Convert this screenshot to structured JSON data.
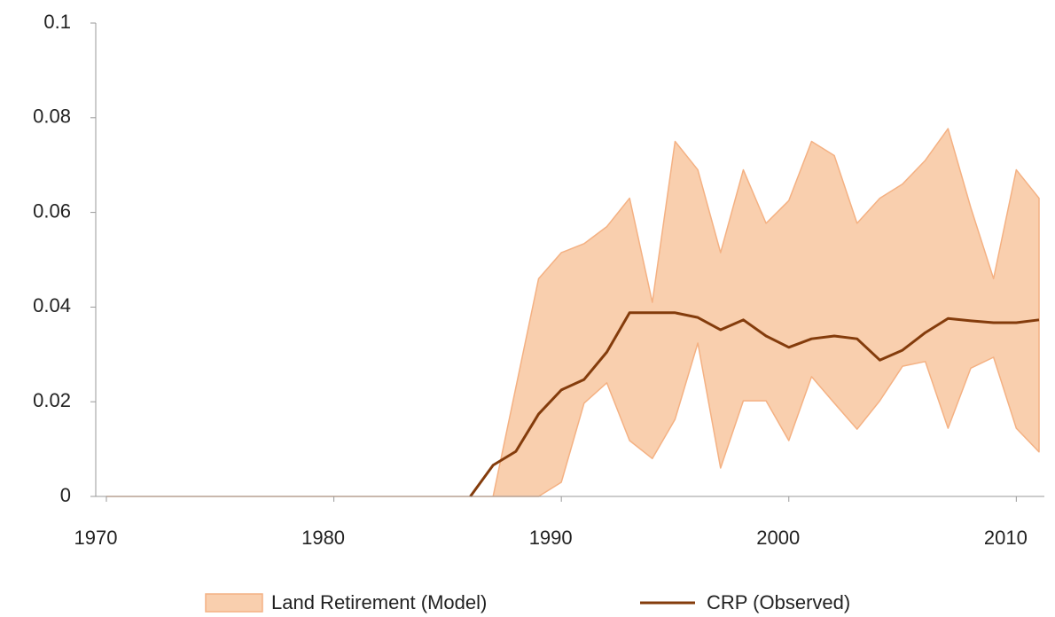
{
  "chart_data": {
    "type": "line",
    "x": [
      1970,
      1971,
      1972,
      1973,
      1974,
      1975,
      1976,
      1977,
      1978,
      1979,
      1980,
      1981,
      1982,
      1983,
      1984,
      1985,
      1986,
      1987,
      1988,
      1989,
      1990,
      1991,
      1992,
      1993,
      1994,
      1995,
      1996,
      1997,
      1998,
      1999,
      2000,
      2001,
      2002,
      2003,
      2004,
      2005,
      2006,
      2007,
      2008,
      2009,
      2010,
      2011
    ],
    "series": [
      {
        "name": "Land Retirement (Model)",
        "type": "band",
        "color": "#f9cfae",
        "edge_color": "#f4b183",
        "lower": [
          0,
          0,
          0,
          0,
          0,
          0,
          0,
          0,
          0,
          0,
          0,
          0,
          0,
          0,
          0,
          0,
          0,
          0,
          0,
          0,
          0.003,
          0.0197,
          0.024,
          0.0118,
          0.008,
          0.0163,
          0.0324,
          0.006,
          0.0202,
          0.0202,
          0.0118,
          0.0253,
          0.0197,
          0.0142,
          0.0202,
          0.0275,
          0.0285,
          0.0144,
          0.0271,
          0.0294,
          0.0144,
          0.0094
        ],
        "upper": [
          0,
          0,
          0,
          0,
          0,
          0,
          0,
          0,
          0,
          0,
          0,
          0,
          0,
          0,
          0,
          0,
          0,
          0,
          0.023,
          0.046,
          0.0515,
          0.0534,
          0.057,
          0.063,
          0.041,
          0.075,
          0.069,
          0.0515,
          0.069,
          0.0577,
          0.0625,
          0.075,
          0.072,
          0.0577,
          0.063,
          0.066,
          0.071,
          0.0777,
          0.061,
          0.046,
          0.069,
          0.063
        ]
      },
      {
        "name": "CRP (Observed)",
        "type": "line",
        "color": "#843c0c",
        "values": [
          null,
          null,
          null,
          null,
          null,
          null,
          null,
          null,
          null,
          null,
          null,
          null,
          null,
          null,
          null,
          null,
          0,
          0.0066,
          0.0095,
          0.0174,
          0.0225,
          0.0247,
          0.0305,
          0.0388,
          0.0388,
          0.0388,
          0.0378,
          0.0352,
          0.0373,
          0.0339,
          0.0315,
          0.0333,
          0.0339,
          0.0333,
          0.0288,
          0.0309,
          0.0346,
          0.0376,
          0.0371,
          0.0367,
          0.0367,
          0.0373
        ]
      }
    ],
    "xlim": [
      1970,
      2011
    ],
    "xticks": [
      1970,
      1980,
      1990,
      2000,
      2010
    ],
    "ylim": [
      0,
      0.1
    ],
    "yticks": [
      0,
      0.02,
      0.04,
      0.06,
      0.08,
      0.1
    ],
    "grid": false,
    "legend": "bottom"
  }
}
